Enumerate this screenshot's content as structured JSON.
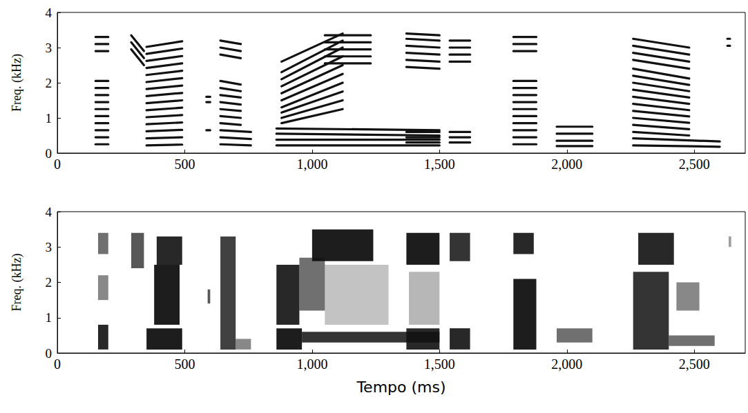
{
  "chart_data": [
    {
      "type": "line",
      "y_label": "Freq. (kHz)",
      "color": "#111111",
      "xlim": [
        0,
        2700
      ],
      "xticks": [
        0,
        500,
        1000,
        1500,
        2000,
        2500
      ],
      "ylim": [
        0,
        4
      ],
      "yticks": [
        0,
        1,
        2,
        3,
        4
      ],
      "segments": [
        {
          "t": [
            150,
            200
          ],
          "harmonics": [
            [
              0.25,
              0.25
            ],
            [
              0.45,
              0.45
            ],
            [
              0.65,
              0.65
            ],
            [
              0.85,
              0.85
            ],
            [
              1.05,
              1.05
            ],
            [
              1.25,
              1.25
            ],
            [
              1.45,
              1.45
            ],
            [
              1.65,
              1.65
            ],
            [
              1.85,
              1.85
            ],
            [
              2.05,
              2.05
            ],
            [
              2.9,
              2.9
            ],
            [
              3.1,
              3.1
            ],
            [
              3.3,
              3.3
            ]
          ]
        },
        {
          "t": [
            290,
            340
          ],
          "harmonics": [
            [
              3.35,
              2.9
            ],
            [
              3.15,
              2.7
            ],
            [
              2.95,
              2.5
            ]
          ]
        },
        {
          "t": [
            350,
            490
          ],
          "harmonics": [
            [
              0.22,
              0.24
            ],
            [
              0.42,
              0.45
            ],
            [
              0.62,
              0.66
            ],
            [
              0.82,
              0.87
            ],
            [
              1.02,
              1.08
            ],
            [
              1.22,
              1.29
            ],
            [
              1.42,
              1.5
            ],
            [
              1.62,
              1.71
            ],
            [
              1.82,
              1.92
            ],
            [
              2.02,
              2.13
            ],
            [
              2.22,
              2.34
            ],
            [
              2.42,
              2.55
            ],
            [
              2.62,
              2.76
            ],
            [
              2.82,
              2.97
            ],
            [
              3.02,
              3.18
            ]
          ]
        },
        {
          "t": [
            585,
            600
          ],
          "harmonics": [
            [
              0.65,
              0.65
            ],
            [
              1.45,
              1.45
            ],
            [
              1.6,
              1.6
            ]
          ]
        },
        {
          "t": [
            640,
            760
          ],
          "harmonics": [
            [
              0.25,
              0.22
            ],
            [
              0.45,
              0.4
            ],
            [
              0.65,
              0.6
            ]
          ]
        },
        {
          "t": [
            640,
            720
          ],
          "harmonics": [
            [
              0.85,
              0.8
            ],
            [
              1.05,
              1.0
            ],
            [
              1.25,
              1.2
            ],
            [
              1.45,
              1.38
            ],
            [
              1.65,
              1.58
            ],
            [
              1.85,
              1.76
            ],
            [
              2.05,
              1.95
            ],
            [
              2.8,
              2.7
            ],
            [
              3.0,
              2.9
            ],
            [
              3.2,
              3.1
            ]
          ]
        },
        {
          "t": [
            860,
            1500
          ],
          "harmonics": [
            [
              0.22,
              0.22
            ],
            [
              0.38,
              0.38
            ],
            [
              0.55,
              0.5
            ],
            [
              0.7,
              0.65
            ]
          ]
        },
        {
          "t": [
            880,
            1120
          ],
          "harmonics": [
            [
              0.85,
              1.25
            ],
            [
              1.0,
              1.5
            ],
            [
              1.15,
              1.75
            ],
            [
              1.3,
              2.0
            ],
            [
              1.5,
              2.25
            ],
            [
              1.7,
              2.5
            ],
            [
              1.9,
              2.75
            ],
            [
              2.1,
              3.0
            ],
            [
              2.3,
              3.2
            ],
            [
              2.6,
              3.4
            ]
          ]
        },
        {
          "t": [
            1050,
            1230
          ],
          "harmonics": [
            [
              2.55,
              2.55
            ],
            [
              2.75,
              2.75
            ],
            [
              2.95,
              2.95
            ],
            [
              3.15,
              3.15
            ],
            [
              3.35,
              3.35
            ]
          ]
        },
        {
          "t": [
            1370,
            1500
          ],
          "harmonics": [
            [
              0.3,
              0.3
            ],
            [
              0.45,
              0.45
            ],
            [
              0.6,
              0.6
            ],
            [
              2.45,
              2.4
            ],
            [
              2.65,
              2.6
            ],
            [
              2.85,
              2.8
            ],
            [
              3.05,
              3.0
            ],
            [
              3.25,
              3.2
            ],
            [
              3.4,
              3.35
            ]
          ]
        },
        {
          "t": [
            1540,
            1620
          ],
          "harmonics": [
            [
              0.3,
              0.3
            ],
            [
              0.45,
              0.45
            ],
            [
              0.6,
              0.6
            ],
            [
              2.6,
              2.6
            ],
            [
              2.8,
              2.8
            ],
            [
              3.0,
              3.0
            ],
            [
              3.2,
              3.2
            ]
          ]
        },
        {
          "t": [
            1790,
            1880
          ],
          "harmonics": [
            [
              0.25,
              0.25
            ],
            [
              0.45,
              0.45
            ],
            [
              0.65,
              0.65
            ],
            [
              0.85,
              0.85
            ],
            [
              1.05,
              1.05
            ],
            [
              1.25,
              1.25
            ],
            [
              1.45,
              1.45
            ],
            [
              1.65,
              1.65
            ],
            [
              1.85,
              1.85
            ],
            [
              2.05,
              2.05
            ],
            [
              2.9,
              2.9
            ],
            [
              3.1,
              3.1
            ],
            [
              3.3,
              3.3
            ]
          ]
        },
        {
          "t": [
            1960,
            2100
          ],
          "harmonics": [
            [
              0.2,
              0.2
            ],
            [
              0.35,
              0.35
            ],
            [
              0.55,
              0.55
            ],
            [
              0.75,
              0.75
            ]
          ]
        },
        {
          "t": [
            2260,
            2480
          ],
          "harmonics": [
            [
              0.6,
              0.5
            ],
            [
              0.8,
              0.68
            ],
            [
              1.0,
              0.86
            ],
            [
              1.2,
              1.04
            ],
            [
              1.4,
              1.22
            ],
            [
              1.6,
              1.4
            ],
            [
              1.8,
              1.58
            ],
            [
              2.0,
              1.76
            ],
            [
              2.2,
              1.94
            ],
            [
              2.4,
              2.12
            ],
            [
              2.65,
              2.4
            ],
            [
              2.85,
              2.6
            ],
            [
              3.05,
              2.8
            ],
            [
              3.25,
              3.0
            ]
          ]
        },
        {
          "t": [
            2260,
            2600
          ],
          "harmonics": [
            [
              0.22,
              0.18
            ],
            [
              0.42,
              0.33
            ]
          ]
        },
        {
          "t": [
            2630,
            2640
          ],
          "harmonics": [
            [
              3.05,
              3.05
            ],
            [
              3.25,
              3.25
            ]
          ]
        }
      ]
    },
    {
      "type": "heatmap",
      "x_label": "Tempo (ms)",
      "y_label": "Freq. (kHz)",
      "color": "#111111",
      "xlim": [
        0,
        2700
      ],
      "xticks": [
        0,
        500,
        1000,
        1500,
        2000,
        2500
      ],
      "ylim": [
        0,
        4
      ],
      "yticks": [
        0,
        1,
        2,
        3,
        4
      ],
      "regions": [
        [
          160,
          200,
          0.1,
          0.8,
          0.9
        ],
        [
          160,
          200,
          1.5,
          2.2,
          0.5
        ],
        [
          160,
          200,
          2.8,
          3.4,
          0.6
        ],
        [
          290,
          340,
          2.4,
          3.4,
          0.7
        ],
        [
          350,
          490,
          0.1,
          0.7,
          0.95
        ],
        [
          380,
          480,
          0.8,
          2.5,
          0.95
        ],
        [
          390,
          490,
          2.5,
          3.3,
          0.9
        ],
        [
          590,
          600,
          1.4,
          1.8,
          0.7
        ],
        [
          640,
          700,
          0.1,
          3.3,
          0.8
        ],
        [
          700,
          760,
          0.1,
          0.4,
          0.5
        ],
        [
          1050,
          1300,
          0.8,
          2.5,
          0.25
        ],
        [
          960,
          1500,
          0.3,
          0.6,
          0.85
        ],
        [
          860,
          960,
          0.1,
          0.7,
          0.95
        ],
        [
          860,
          950,
          0.8,
          2.5,
          0.9
        ],
        [
          950,
          1050,
          1.2,
          2.7,
          0.6
        ],
        [
          1000,
          1240,
          2.6,
          3.5,
          0.95
        ],
        [
          1380,
          1500,
          0.8,
          2.3,
          0.3
        ],
        [
          1370,
          1500,
          2.5,
          3.4,
          0.95
        ],
        [
          1370,
          1500,
          0.1,
          0.7,
          0.9
        ],
        [
          1540,
          1620,
          0.1,
          0.7,
          0.9
        ],
        [
          1540,
          1620,
          2.6,
          3.4,
          0.85
        ],
        [
          1790,
          1880,
          0.1,
          2.1,
          0.95
        ],
        [
          1790,
          1870,
          2.8,
          3.4,
          0.9
        ],
        [
          1960,
          2100,
          0.3,
          0.7,
          0.6
        ],
        [
          2260,
          2400,
          0.1,
          2.3,
          0.85
        ],
        [
          2280,
          2420,
          2.5,
          3.4,
          0.9
        ],
        [
          2400,
          2580,
          0.2,
          0.5,
          0.6
        ],
        [
          2430,
          2520,
          1.2,
          2.0,
          0.5
        ],
        [
          2635,
          2645,
          3.0,
          3.3,
          0.4
        ]
      ]
    }
  ]
}
